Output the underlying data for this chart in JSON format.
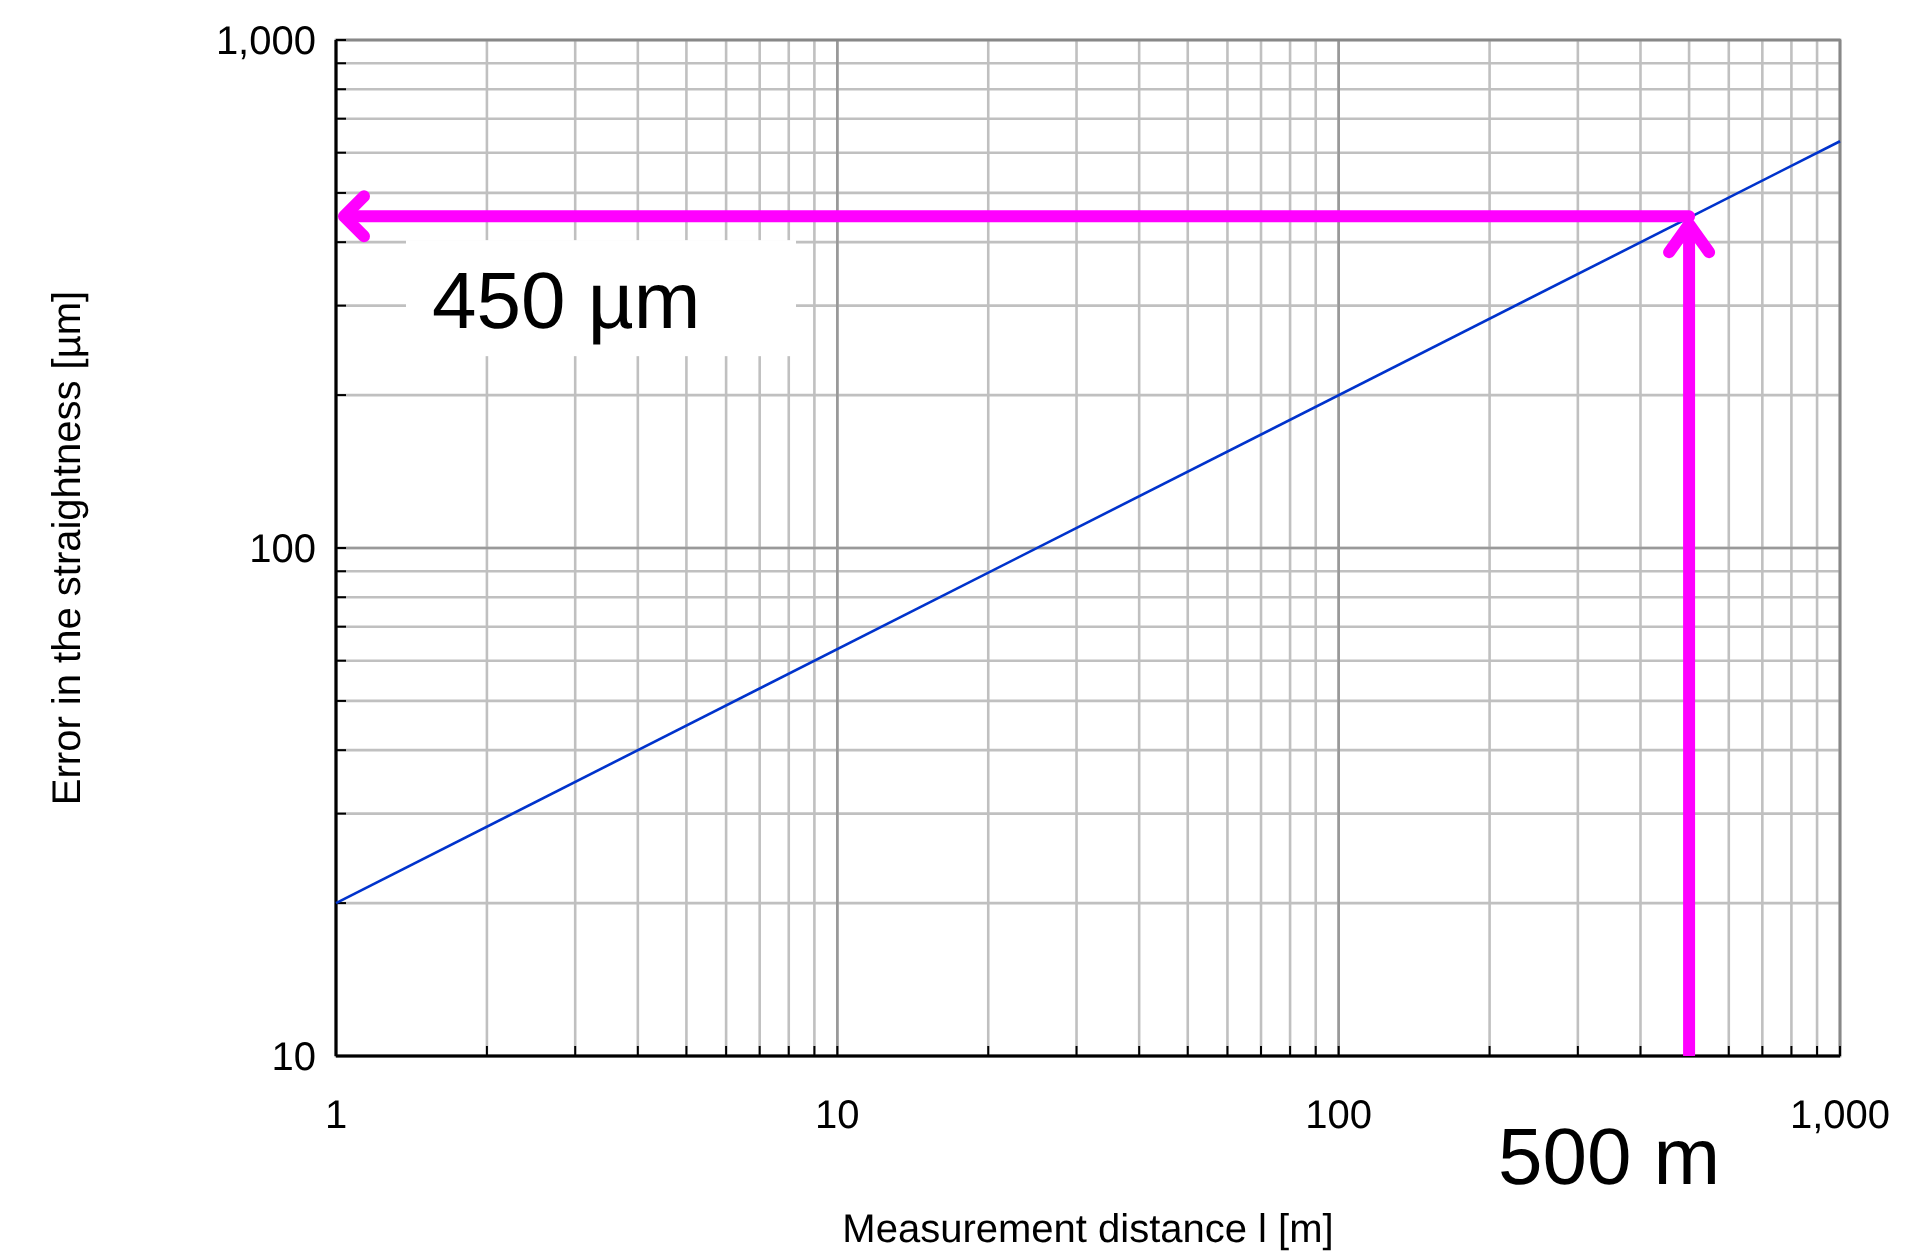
{
  "chart_data": {
    "type": "line",
    "xlabel": "Measurement distance l [m]",
    "ylabel": "Error in the straightness [µm]",
    "x": [
      1,
      1000
    ],
    "series": [
      {
        "color": "#0033cc",
        "values": [
          20,
          632
        ]
      }
    ],
    "log": "xy",
    "grid": true,
    "marker": "none",
    "line_style": "solid",
    "xlim": [
      1,
      1000
    ],
    "xticks": [
      1,
      10,
      100,
      {
        "value": 1000,
        "label": "1,000"
      }
    ],
    "ylim": [
      10,
      1000
    ],
    "yticks": [
      10,
      100,
      {
        "value": 1000,
        "label": "1,000"
      }
    ],
    "ref_lines": [
      {
        "axis": "y",
        "value": 450,
        "label": "450 µm",
        "color": "#ff00ff"
      },
      {
        "axis": "x",
        "value": 500,
        "label": "500 m",
        "color": "#ff00ff"
      }
    ]
  }
}
